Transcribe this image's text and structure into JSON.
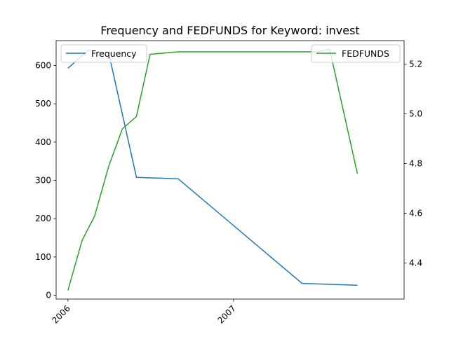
{
  "chart_data": {
    "type": "line",
    "title": "Frequency and FEDFUNDS for Keyword: invest",
    "x_ticks": [
      "2006",
      "2007"
    ],
    "x_range": [
      "2005-12-06",
      "2008-01-12"
    ],
    "series": [
      {
        "name": "Frequency",
        "axis": "left",
        "color": "#1f77b4",
        "points": [
          {
            "x": "2006-01-01",
            "y": 593
          },
          {
            "x": "2006-02-15",
            "y": 640
          },
          {
            "x": "2006-04-01",
            "y": 632
          },
          {
            "x": "2006-06-01",
            "y": 308
          },
          {
            "x": "2006-09-01",
            "y": 304
          },
          {
            "x": "2007-06-01",
            "y": 31
          },
          {
            "x": "2007-10-01",
            "y": 26
          }
        ]
      },
      {
        "name": "FEDFUNDS",
        "axis": "right",
        "color": "#2ca02c",
        "points": [
          {
            "x": "2006-01-01",
            "y": 4.29
          },
          {
            "x": "2006-02-01",
            "y": 4.49
          },
          {
            "x": "2006-03-01",
            "y": 4.59
          },
          {
            "x": "2006-04-01",
            "y": 4.79
          },
          {
            "x": "2006-05-01",
            "y": 4.94
          },
          {
            "x": "2006-06-01",
            "y": 4.99
          },
          {
            "x": "2006-07-01",
            "y": 5.24
          },
          {
            "x": "2006-09-01",
            "y": 5.25
          },
          {
            "x": "2007-07-01",
            "y": 5.25
          },
          {
            "x": "2007-08-01",
            "y": 5.26
          },
          {
            "x": "2007-10-01",
            "y": 4.76
          }
        ]
      }
    ],
    "y_left": {
      "ylim": [
        -10,
        665
      ],
      "ticks": [
        0,
        100,
        200,
        300,
        400,
        500,
        600
      ]
    },
    "y_right": {
      "ylim": [
        4.255,
        5.295
      ],
      "ticks": [
        4.4,
        4.6,
        4.8,
        5.0,
        5.2
      ]
    },
    "legend_left": "upper left",
    "legend_right": "upper right",
    "grid": false
  }
}
